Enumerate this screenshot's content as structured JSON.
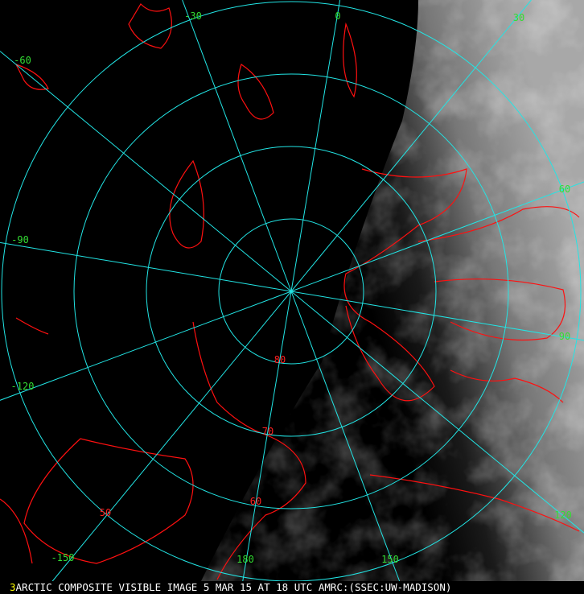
{
  "caption": {
    "frame_number": "3",
    "text": "ARCTIC COMPOSITE VISIBLE IMAGE 5 MAR 15 AT 18 UTC AMRC:(SSEC:UW-MADISON)"
  },
  "map": {
    "projection": "north polar stereographic",
    "graticule_color": "#22e5e5",
    "coastline_color": "#ff1010",
    "lat_label_color": "#ff2020",
    "lon_label_color": "#33dd33",
    "latitudes": [
      {
        "value": 80,
        "label": "80"
      },
      {
        "value": 70,
        "label": "70"
      },
      {
        "value": 60,
        "label": "60"
      },
      {
        "value": 50,
        "label": "50"
      }
    ],
    "longitudes": [
      {
        "value": -30,
        "label": "-30"
      },
      {
        "value": 0,
        "label": "0"
      },
      {
        "value": 30,
        "label": "30"
      },
      {
        "value": 60,
        "label": "60"
      },
      {
        "value": 90,
        "label": "90"
      },
      {
        "value": 120,
        "label": "120"
      },
      {
        "value": 150,
        "label": "150"
      },
      {
        "value": 180,
        "label": "180"
      },
      {
        "value": -150,
        "label": "-150"
      },
      {
        "value": -120,
        "label": "-120"
      },
      {
        "value": -90,
        "label": "-90"
      },
      {
        "value": -60,
        "label": "-60"
      }
    ]
  }
}
